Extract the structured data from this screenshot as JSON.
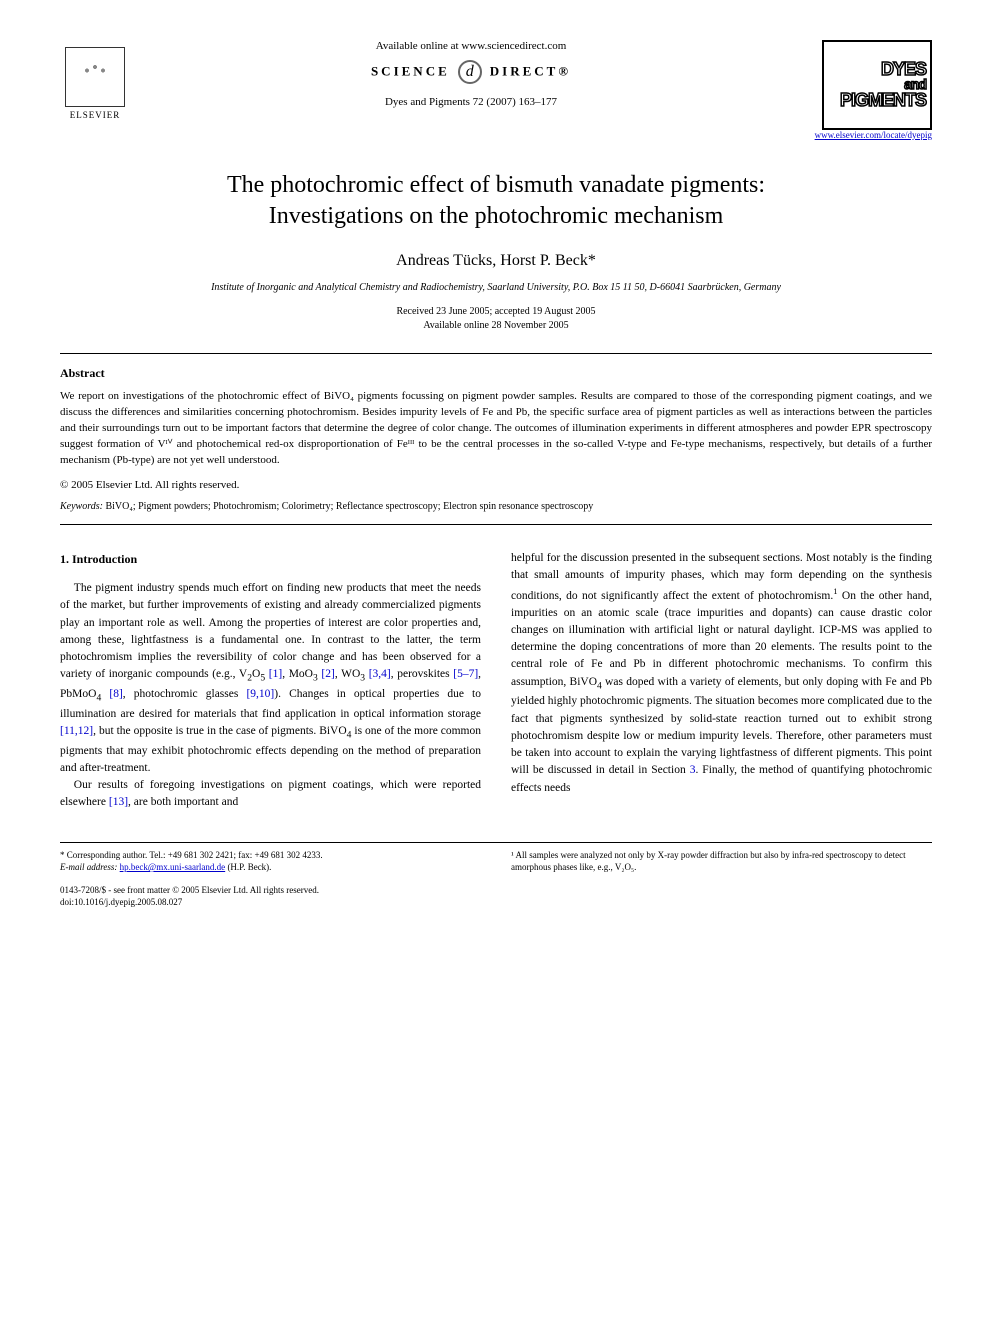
{
  "header": {
    "available_online": "Available online at www.sciencedirect.com",
    "science_direct_left": "SCIENCE",
    "science_direct_at": "d",
    "science_direct_right": "DIRECT®",
    "journal_ref": "Dyes and Pigments 72 (2007) 163–177",
    "elsevier_label": "ELSEVIER",
    "dyes_line1": "DYES",
    "dyes_line2": "and",
    "dyes_line3": "PIGMENTS",
    "journal_url": "www.elsevier.com/locate/dyepig"
  },
  "article": {
    "title_line1": "The photochromic effect of bismuth vanadate pigments:",
    "title_line2": "Investigations on the photochromic mechanism",
    "authors": "Andreas Tücks, Horst P. Beck*",
    "affiliation": "Institute of Inorganic and Analytical Chemistry and Radiochemistry, Saarland University, P.O. Box 15 11 50, D-66041 Saarbrücken, Germany",
    "received": "Received 23 June 2005; accepted 19 August 2005",
    "available": "Available online 28 November 2005"
  },
  "abstract": {
    "heading": "Abstract",
    "text": "We report on investigations of the photochromic effect of BiVO₄ pigments focussing on pigment powder samples. Results are compared to those of the corresponding pigment coatings, and we discuss the differences and similarities concerning photochromism. Besides impurity levels of Fe and Pb, the specific surface area of pigment particles as well as interactions between the particles and their surroundings turn out to be important factors that determine the degree of color change. The outcomes of illumination experiments in different atmospheres and powder EPR spectroscopy suggest formation of Vᴵⱽ and photochemical red-ox disproportionation of Feᴵᴵᴵ to be the central processes in the so-called V-type and Fe-type mechanisms, respectively, but details of a further mechanism (Pb-type) are not yet well understood.",
    "copyright": "© 2005 Elsevier Ltd. All rights reserved.",
    "keywords_label": "Keywords:",
    "keywords": " BiVO₄; Pigment powders; Photochromism; Colorimetry; Reflectance spectroscopy; Electron spin resonance spectroscopy"
  },
  "body": {
    "section_heading": "1. Introduction",
    "col1_p1": "The pigment industry spends much effort on finding new products that meet the needs of the market, but further improvements of existing and already commercialized pigments play an important role as well. Among the properties of interest are color properties and, among these, lightfastness is a fundamental one. In contrast to the latter, the term photochromism implies the reversibility of color change and has been observed for a variety of inorganic compounds (e.g., V₂O₅ [1], MoO₃ [2], WO₃ [3,4], perovskites [5–7], PbMoO₄ [8], photochromic glasses [9,10]). Changes in optical properties due to illumination are desired for materials that find application in optical information storage [11,12], but the opposite is true in the case of pigments. BiVO₄ is one of the more common pigments that may exhibit photochromic effects depending on the method of preparation and after-treatment.",
    "col1_p2": "Our results of foregoing investigations on pigment coatings, which were reported elsewhere [13], are both important and",
    "col2_p1": "helpful for the discussion presented in the subsequent sections. Most notably is the finding that small amounts of impurity phases, which may form depending on the synthesis conditions, do not significantly affect the extent of photochromism.¹ On the other hand, impurities on an atomic scale (trace impurities and dopants) can cause drastic color changes on illumination with artificial light or natural daylight. ICP-MS was applied to determine the doping concentrations of more than 20 elements. The results point to the central role of Fe and Pb in different photochromic mechanisms. To confirm this assumption, BiVO₄ was doped with a variety of elements, but only doping with Fe and Pb yielded highly photochromic pigments. The situation becomes more complicated due to the fact that pigments synthesized by solid-state reaction turned out to exhibit strong photochromism despite low or medium impurity levels. Therefore, other parameters must be taken into account to explain the varying lightfastness of different pigments. This point will be discussed in detail in Section 3. Finally, the method of quantifying photochromic effects needs"
  },
  "footnotes": {
    "corr_author": "* Corresponding author. Tel.: +49 681 302 2421; fax: +49 681 302 4233.",
    "email_label": "E-mail address:",
    "email": "hp.beck@mx.uni-saarland.de",
    "email_suffix": " (H.P. Beck).",
    "fn1": "¹ All samples were analyzed not only by X-ray powder diffraction but also by infra-red spectroscopy to detect amorphous phases like, e.g., V₂O₅.",
    "issn": "0143-7208/$ - see front matter © 2005 Elsevier Ltd. All rights reserved.",
    "doi": "doi:10.1016/j.dyepig.2005.08.027"
  },
  "refs": {
    "r1": "[1]",
    "r2": "[2]",
    "r34": "[3,4]",
    "r57": "[5–7]",
    "r8": "[8]",
    "r910": "[9,10]",
    "r1112": "[11,12]",
    "r13": "[13]",
    "sec3": "3"
  }
}
